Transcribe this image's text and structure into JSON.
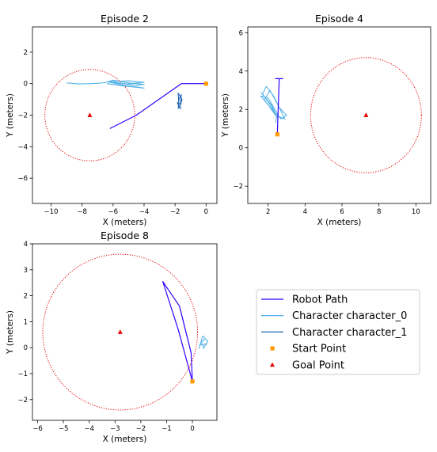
{
  "colors": {
    "robot": "#3300ff",
    "character_0": "#5ab4e6",
    "character_1": "#1f63b4",
    "start": "#ff9900",
    "goal": "#e60000",
    "goal_circle": "#e60000"
  },
  "legend": {
    "placement": "lower-right",
    "entries": [
      {
        "label": "Robot Path",
        "marker": "line",
        "color_key": "robot"
      },
      {
        "label": "Character character_0",
        "marker": "line",
        "color_key": "character_0"
      },
      {
        "label": "Character character_1",
        "marker": "line",
        "color_key": "character_1"
      },
      {
        "label": "Start Point",
        "marker": "square",
        "color_key": "start"
      },
      {
        "label": "Goal Point",
        "marker": "triangle",
        "color_key": "goal"
      }
    ]
  },
  "chart_data": [
    {
      "type": "line",
      "title": "Episode 2",
      "xlabel": "X (meters)",
      "ylabel": "Y (meters)",
      "xlim": [
        -11.2,
        0.7
      ],
      "ylim": [
        -7.6,
        3.6
      ],
      "xticks": [
        -10,
        -8,
        -6,
        -4,
        -2,
        0
      ],
      "yticks": [
        -6,
        -4,
        -2,
        0,
        2
      ],
      "grid": false,
      "start": [
        0,
        0
      ],
      "goal": [
        -7.5,
        -2.0
      ],
      "goal_radius": 2.9,
      "robot_path": [
        [
          0,
          0
        ],
        [
          -1.6,
          0
        ],
        [
          -4.5,
          -2.0
        ],
        [
          -6.2,
          -2.85
        ]
      ],
      "characters": [
        {
          "name": "character_0",
          "path": [
            [
              -9.0,
              0.05
            ],
            [
              -8.2,
              -0.02
            ],
            [
              -7.4,
              0.0
            ],
            [
              -6.6,
              0.05
            ],
            [
              -6.0,
              0.22
            ],
            [
              -5.0,
              0.05
            ],
            [
              -4.0,
              -0.05
            ],
            [
              -4.5,
              -0.1
            ],
            [
              -6.2,
              0.12
            ],
            [
              -5.0,
              0.18
            ],
            [
              -4.0,
              0.08
            ],
            [
              -5.2,
              -0.02
            ],
            [
              -6.3,
              0.1
            ],
            [
              -5.4,
              -0.08
            ],
            [
              -4.0,
              -0.28
            ],
            [
              -5.3,
              -0.15
            ],
            [
              -6.4,
              0.0
            ]
          ]
        },
        {
          "name": "character_1",
          "path": [
            [
              -1.8,
              -1.6
            ],
            [
              -1.75,
              -1.0
            ],
            [
              -1.6,
              -0.7
            ],
            [
              -1.65,
              -1.3
            ],
            [
              -1.85,
              -1.2
            ],
            [
              -1.7,
              -1.55
            ],
            [
              -1.55,
              -1.0
            ],
            [
              -1.8,
              -0.6
            ],
            [
              -1.75,
              -1.45
            ],
            [
              -1.6,
              -1.6
            ]
          ]
        }
      ]
    },
    {
      "type": "line",
      "title": "Episode 4",
      "xlabel": "X (meters)",
      "ylabel": "Y (meters)",
      "xlim": [
        0.9,
        10.8
      ],
      "ylim": [
        -2.9,
        6.3
      ],
      "xticks": [
        2,
        4,
        6,
        8,
        10
      ],
      "yticks": [
        -2,
        0,
        2,
        4,
        6
      ],
      "grid": false,
      "start": [
        2.5,
        0.7
      ],
      "goal": [
        7.3,
        1.7
      ],
      "goal_radius": 3.0,
      "robot_path": [
        [
          2.5,
          0.7
        ],
        [
          2.6,
          3.6
        ],
        [
          2.4,
          3.6
        ],
        [
          2.8,
          3.6
        ],
        [
          2.6,
          3.6
        ]
      ],
      "characters": [
        {
          "name": "character_0",
          "path": [
            [
              1.6,
              2.9
            ],
            [
              2.0,
              2.4
            ],
            [
              2.5,
              1.6
            ],
            [
              2.2,
              2.2
            ],
            [
              1.7,
              2.8
            ],
            [
              1.9,
              3.2
            ],
            [
              2.3,
              2.7
            ],
            [
              2.9,
              1.5
            ],
            [
              2.4,
              1.7
            ],
            [
              1.8,
              2.5
            ],
            [
              2.1,
              3.0
            ],
            [
              2.6,
              2.1
            ],
            [
              3.0,
              1.7
            ],
            [
              2.7,
              1.5
            ],
            [
              2.2,
              2.0
            ],
            [
              1.6,
              2.7
            ],
            [
              2.0,
              2.6
            ],
            [
              2.5,
              1.8
            ],
            [
              2.4,
              1.3
            ]
          ]
        },
        {
          "name": "character_1",
          "path": []
        }
      ]
    },
    {
      "type": "line",
      "title": "Episode 8",
      "xlabel": "X (meters)",
      "ylabel": "Y (meters)",
      "xlim": [
        -6.2,
        0.95
      ],
      "ylim": [
        -2.8,
        4.0
      ],
      "xticks": [
        -6,
        -5,
        -4,
        -3,
        -2,
        -1,
        0
      ],
      "yticks": [
        -2,
        -1,
        0,
        1,
        2,
        3,
        4
      ],
      "grid": false,
      "start": [
        0,
        -1.3
      ],
      "goal": [
        -2.8,
        0.6
      ],
      "goal_radius": 3.0,
      "robot_path": [
        [
          0,
          -1.3
        ],
        [
          -0.05,
          -0.2
        ],
        [
          -0.5,
          1.6
        ],
        [
          -1.15,
          2.55
        ],
        [
          -0.55,
          0.7
        ],
        [
          0,
          -1.3
        ]
      ],
      "characters": [
        {
          "name": "character_0",
          "path": [
            [
              0.25,
              -0.05
            ],
            [
              0.3,
              0.15
            ],
            [
              0.5,
              0.35
            ],
            [
              0.35,
              0.2
            ],
            [
              0.45,
              0.0
            ],
            [
              0.6,
              0.25
            ],
            [
              0.4,
              0.45
            ],
            [
              0.3,
              0.1
            ],
            [
              0.55,
              0.15
            ],
            [
              0.4,
              -0.05
            ]
          ]
        },
        {
          "name": "character_1",
          "path": []
        }
      ]
    }
  ]
}
